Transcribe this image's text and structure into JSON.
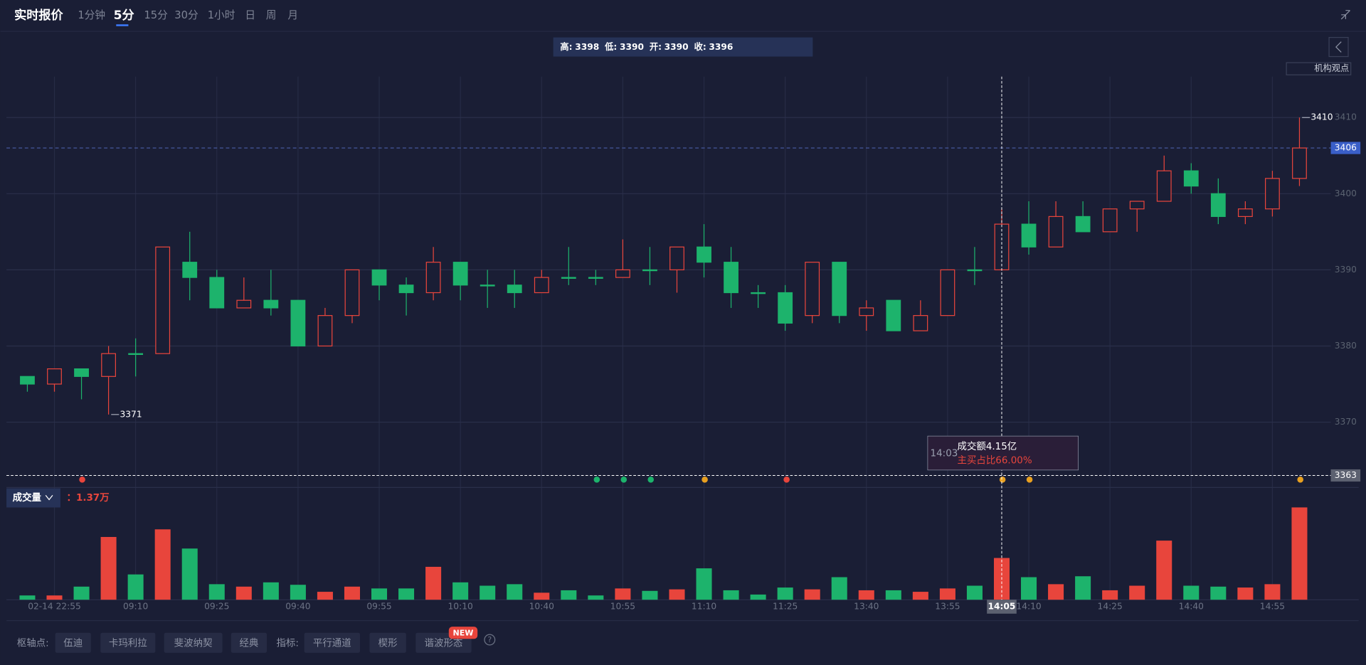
{
  "toolbar": {
    "title": "实时报价",
    "periods": [
      "1分钟",
      "5分",
      "15分",
      "30分",
      "1小时",
      "日",
      "周",
      "月"
    ],
    "opinion": "机构观点"
  },
  "info_bar": {
    "labels": [
      "高:",
      "低:",
      "开:",
      "收:"
    ]
  },
  "tooltip": {
    "time": "14:03",
    "turnover": "成交额4.15亿",
    "buy_ratio": "主买占比66.00%"
  },
  "volume_header": {
    "title": "成交量",
    "volume_label": "：1.37万"
  },
  "bottom_bar": {
    "pivot_label": "枢轴点:",
    "pivots": [
      "伍迪",
      "卡玛利拉",
      "斐波纳契",
      "经典"
    ],
    "indicator_label": "指标:",
    "indicators": [
      "平行通道",
      "楔形",
      "谐波形态"
    ],
    "badge": "NEW",
    "help": "?"
  },
  "chart_data": {
    "type": "candlestick",
    "grid": true,
    "up_color": "#e8453c",
    "down_color": "#1db36c",
    "categories": [
      null,
      "02-14 22:55",
      null,
      null,
      "09:10",
      null,
      null,
      "09:25",
      null,
      null,
      "09:40",
      null,
      null,
      "09:55",
      null,
      null,
      "10:10",
      null,
      null,
      "10:40",
      null,
      null,
      "10:55",
      null,
      null,
      "11:10",
      null,
      null,
      "11:25",
      null,
      null,
      "13:40",
      null,
      null,
      "13:55",
      null,
      null,
      "14:10",
      null,
      null,
      "14:25",
      null,
      null,
      "14:40",
      null,
      null,
      "14:55",
      null
    ],
    "open": [
      3376,
      3375,
      3377,
      3376,
      3379,
      3379,
      3391,
      3389,
      3385,
      3386,
      3386,
      3380,
      3384,
      3390,
      3388,
      3387,
      3391,
      3388,
      3388,
      3387,
      3389,
      3389,
      3389,
      3390,
      3390,
      3393,
      3391,
      3387,
      3387,
      3384,
      3391,
      3384,
      3386,
      3382,
      3384,
      3390,
      3390,
      3396,
      3393,
      3397,
      3395,
      3398,
      3399,
      3403,
      3400,
      3397,
      3398,
      3402
    ],
    "high": [
      3376,
      3377,
      3377,
      3380,
      3381,
      3393,
      3395,
      3390,
      3389,
      3390,
      3386,
      3385,
      3390,
      3390,
      3389,
      3393,
      3391,
      3390,
      3390,
      3390,
      3393,
      3390,
      3394,
      3393,
      3393,
      3396,
      3393,
      3388,
      3388,
      3391,
      3391,
      3386,
      3386,
      3386,
      3390,
      3393,
      3398,
      3399,
      3399,
      3399,
      3398,
      3399,
      3405,
      3404,
      3402,
      3399,
      3403,
      3410
    ],
    "low": [
      3374,
      3374,
      3373,
      3371,
      3376,
      3379,
      3386,
      3385,
      3385,
      3384,
      3380,
      3380,
      3383,
      3386,
      3384,
      3386,
      3386,
      3385,
      3385,
      3387,
      3388,
      3388,
      3389,
      3388,
      3387,
      3389,
      3385,
      3385,
      3382,
      3383,
      3383,
      3382,
      3382,
      3382,
      3384,
      3388,
      3390,
      3392,
      3393,
      3395,
      3395,
      3395,
      3399,
      3400,
      3396,
      3396,
      3397,
      3401
    ],
    "close": [
      3375,
      3377,
      3376,
      3379,
      3379,
      3393,
      3389,
      3385,
      3386,
      3385,
      3380,
      3384,
      3390,
      3388,
      3387,
      3391,
      3388,
      3388,
      3387,
      3389,
      3389,
      3389,
      3390,
      3390,
      3393,
      3391,
      3387,
      3387,
      3383,
      3391,
      3384,
      3385,
      3382,
      3384,
      3390,
      3390,
      3396,
      3393,
      3397,
      3395,
      3398,
      3399,
      3403,
      3401,
      3397,
      3398,
      3402,
      3406
    ],
    "volume": [
      0.14,
      0.14,
      0.43,
      2.06,
      0.83,
      2.31,
      1.68,
      0.51,
      0.43,
      0.57,
      0.49,
      0.26,
      0.43,
      0.37,
      0.37,
      1.08,
      0.57,
      0.46,
      0.51,
      0.23,
      0.31,
      0.14,
      0.37,
      0.29,
      0.34,
      1.03,
      0.31,
      0.17,
      0.4,
      0.34,
      0.74,
      0.31,
      0.31,
      0.26,
      0.37,
      0.46,
      1.37,
      0.74,
      0.51,
      0.77,
      0.31,
      0.46,
      1.94,
      0.46,
      0.43,
      0.4,
      0.51,
      3.03
    ],
    "ylim": [
      3361,
      3415
    ],
    "yticks": [
      3370,
      3380,
      3390,
      3400,
      3410
    ],
    "volume_ylim": [
      0,
      3.2
    ],
    "crosshair": {
      "x": "14:05",
      "price": 3363
    }
  }
}
